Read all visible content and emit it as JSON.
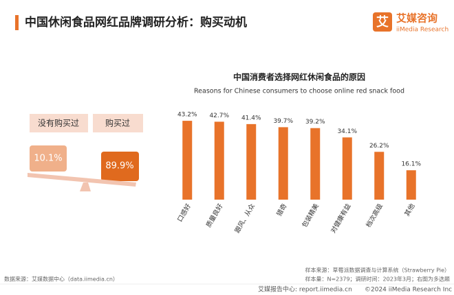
{
  "header": {
    "title": "中国休闲食品网红品牌调研分析：购买动机",
    "logo_char": "艾",
    "logo_cn": "艾媒咨询",
    "logo_en": "iiMedia Research"
  },
  "seesaw": {
    "labels": [
      "没有购买过",
      "购买过"
    ],
    "values": [
      10.1,
      89.9
    ],
    "value_labels": [
      "10.1%",
      "89.9%"
    ]
  },
  "chart_data": {
    "type": "bar",
    "title": "中国消费者选择网红休闲食品的原因",
    "subtitle": "Reasons for Chinese consumers to choose online red snack food",
    "categories": [
      "口感好",
      "质量良好",
      "跟风、从众",
      "猎奇",
      "包装精美",
      "对健康有益",
      "档次高级",
      "其他"
    ],
    "values": [
      43.2,
      42.7,
      41.4,
      39.7,
      39.2,
      34.1,
      26.2,
      16.1
    ],
    "value_labels": [
      "43.2%",
      "42.7%",
      "41.4%",
      "39.7%",
      "39.2%",
      "34.1%",
      "26.2%",
      "16.1%"
    ],
    "color": "#e8732a",
    "ylim": [
      0,
      50
    ]
  },
  "footer": {
    "data_source": "数据来源：艾媒数据中心（data.iimedia.cn）",
    "sample_source": "样本来源：草莓派数据调查与计算系统（Strawberry Pie）",
    "sample_size": "样本量：N=2379；调研时间：2023年3月；右图为多选题",
    "report": "艾媒报告中心: report.iimedia.cn",
    "copyright": "©2024  iiMedia Research Inc"
  }
}
